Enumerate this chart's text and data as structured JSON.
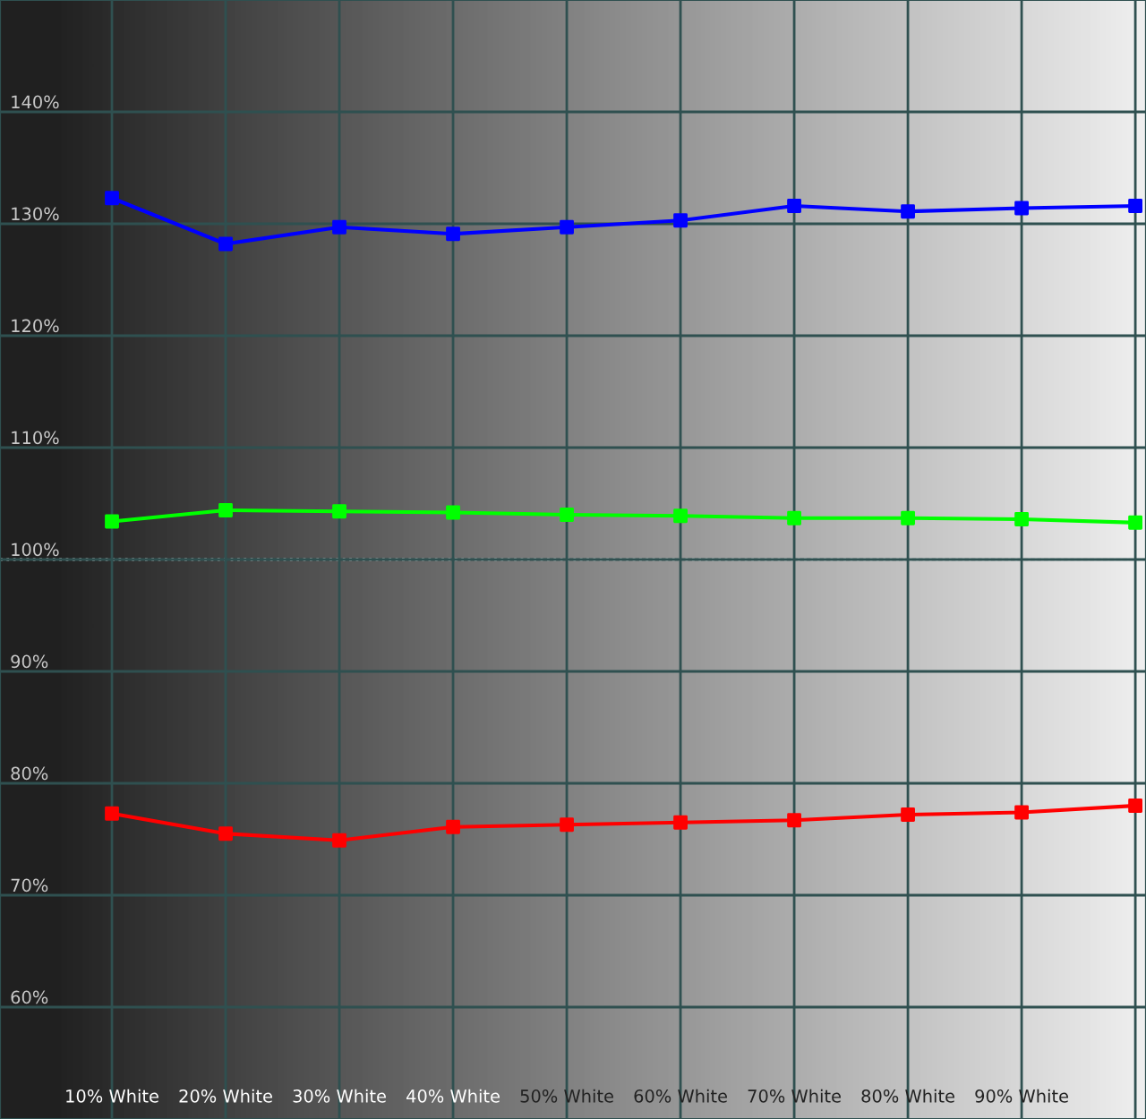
{
  "chart_data": {
    "type": "line",
    "categories": [
      "10% White",
      "20% White",
      "30% White",
      "40% White",
      "50% White",
      "60% White",
      "70% White",
      "80% White",
      "90% White",
      null
    ],
    "series": [
      {
        "color": "#0000ff",
        "values": [
          132.3,
          128.2,
          129.7,
          129.1,
          129.7,
          130.3,
          131.6,
          131.1,
          131.4,
          131.6
        ]
      },
      {
        "color": "#00ff00",
        "values": [
          103.4,
          104.4,
          104.3,
          104.2,
          104.0,
          103.9,
          103.7,
          103.7,
          103.6,
          103.3
        ]
      },
      {
        "color": "#ff0000",
        "values": [
          77.3,
          75.5,
          74.9,
          76.1,
          76.3,
          76.5,
          76.7,
          77.2,
          77.4,
          78.0
        ]
      }
    ],
    "ylim": [
      50,
      150
    ],
    "yticks": [
      {
        "value": 60,
        "label": "60%"
      },
      {
        "value": 70,
        "label": "70%"
      },
      {
        "value": 80,
        "label": "80%"
      },
      {
        "value": 90,
        "label": "90%"
      },
      {
        "value": 100,
        "label": "100%"
      },
      {
        "value": 110,
        "label": "110%"
      },
      {
        "value": 120,
        "label": "120%"
      },
      {
        "value": 130,
        "label": "130%"
      },
      {
        "value": 140,
        "label": "140%"
      }
    ],
    "ref_lines": [
      {
        "axis": "y",
        "value": 100,
        "color": "#ffffff",
        "line_style": "dotted"
      }
    ],
    "grid": true,
    "marker": "square",
    "line_style": "solid",
    "legend": false
  }
}
